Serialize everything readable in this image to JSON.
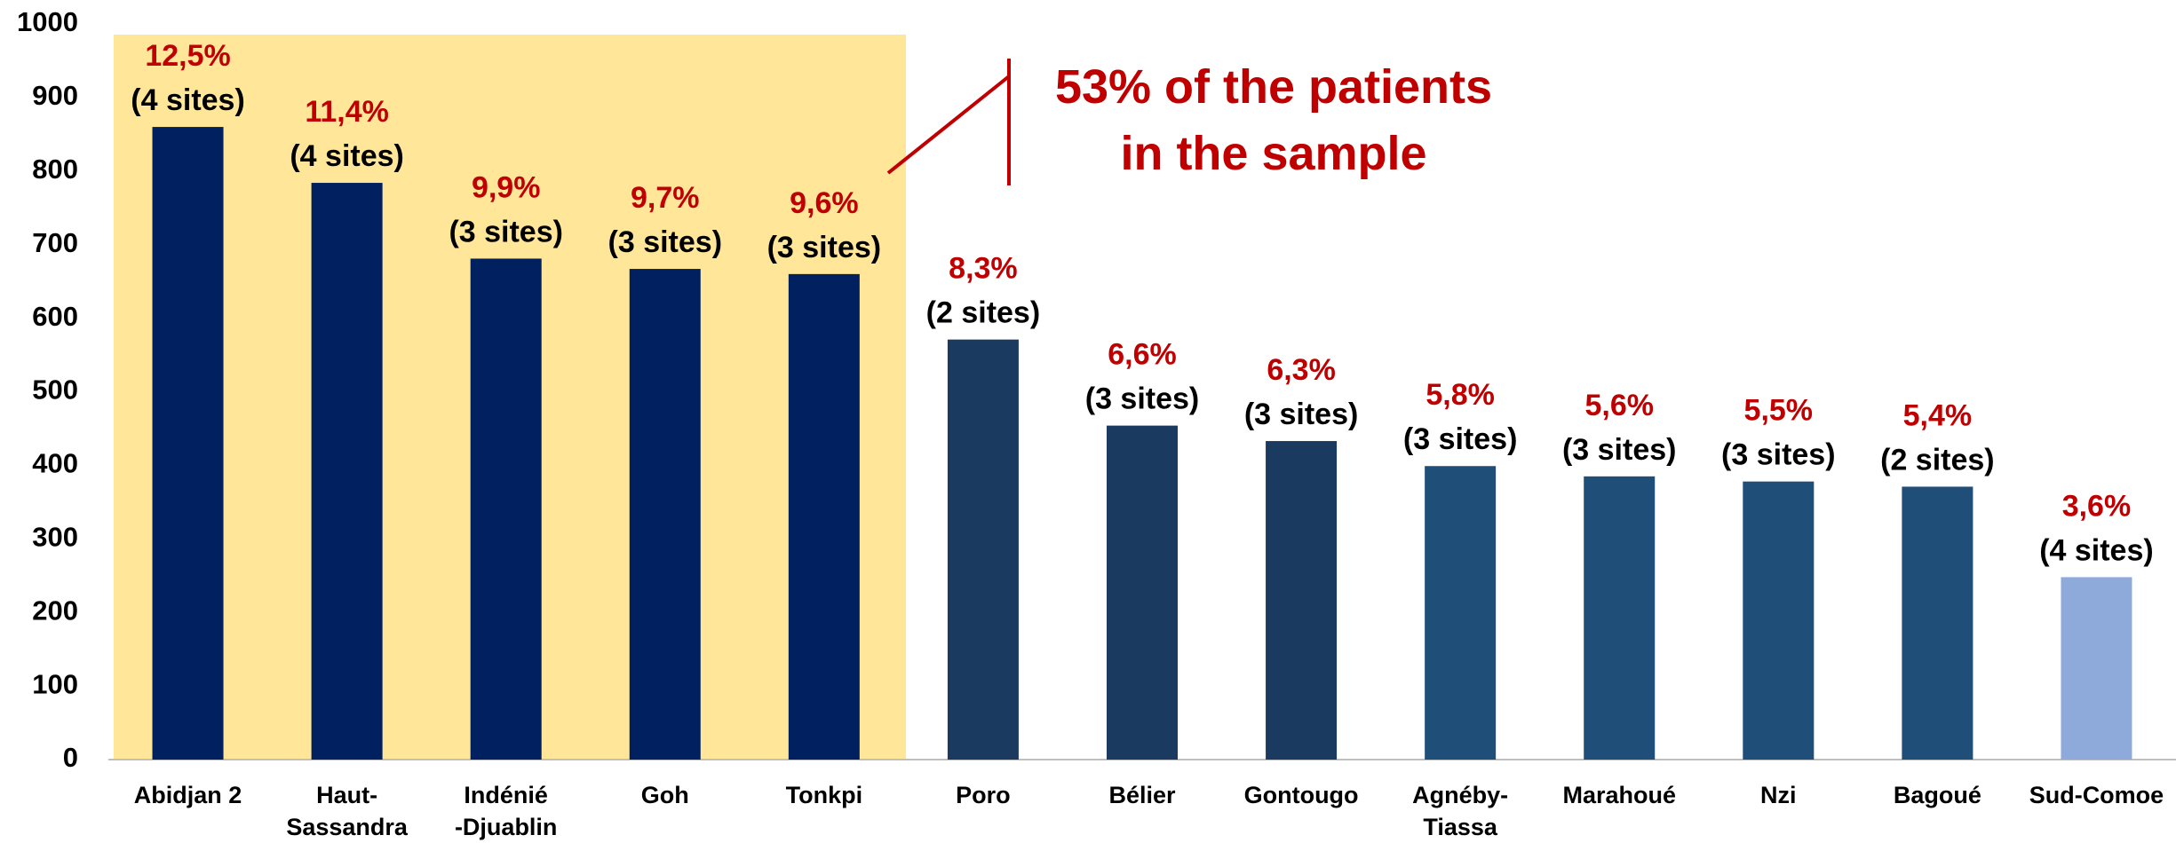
{
  "chart_data": {
    "type": "bar",
    "categories": [
      "Abidjan 2",
      "Haut-\nSassandra",
      "Indénié\n-Djuablin",
      "Goh",
      "Tonkpi",
      "Poro",
      "Bélier",
      "Gontougo",
      "Agnéby-\nTiassa",
      "Marahoué",
      "Nzi",
      "Bagoué",
      "Sud-Comoe"
    ],
    "values": [
      860,
      784,
      681,
      667,
      660,
      571,
      454,
      433,
      399,
      385,
      378,
      371,
      248
    ],
    "percent_labels": [
      "12,5%",
      "11,4%",
      "9,9%",
      "9,7%",
      "9,6%",
      "8,3%",
      "6,6%",
      "6,3%",
      "5,8%",
      "5,6%",
      "5,5%",
      "5,4%",
      "3,6%"
    ],
    "site_labels": [
      "(4 sites)",
      "(4 sites)",
      "(3 sites)",
      "(3 sites)",
      "(3 sites)",
      "(2 sites)",
      "(3 sites)",
      "(3 sites)",
      "(3 sites)",
      "(3 sites)",
      "(3 sites)",
      "(2 sites)",
      "(4 sites)"
    ],
    "colors": [
      "#002060",
      "#002060",
      "#002060",
      "#002060",
      "#002060",
      "#1b3a60",
      "#1b3a60",
      "#1b3a60",
      "#1f4e79",
      "#1f4e79",
      "#1f4e79",
      "#1f4e79",
      "#8eaadb"
    ],
    "ylim": [
      0,
      1000
    ],
    "yticks": [
      0,
      100,
      200,
      300,
      400,
      500,
      600,
      700,
      800,
      900,
      1000
    ],
    "grid": false,
    "annotation": "53% of the patients\nin the sample"
  }
}
